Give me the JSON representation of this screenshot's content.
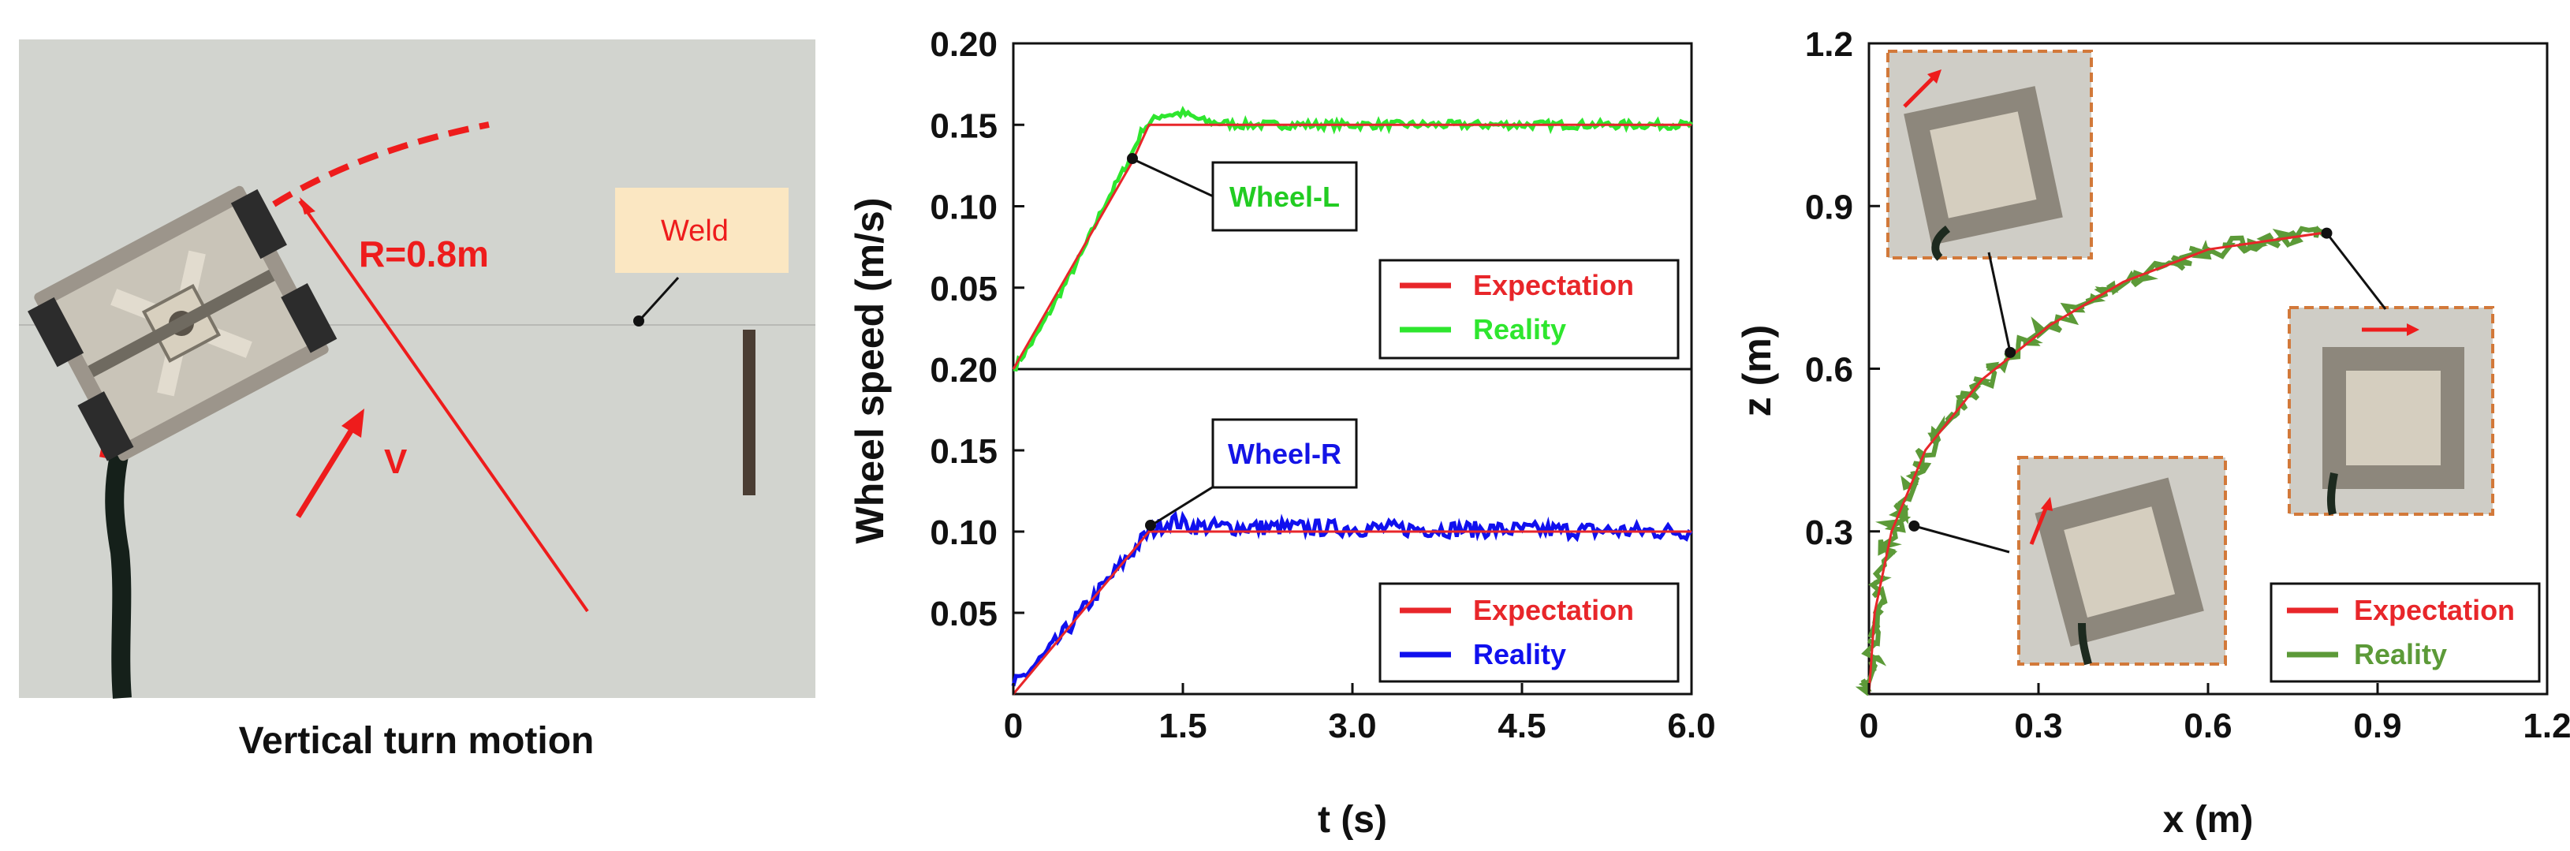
{
  "photo": {
    "caption": "Vertical turn motion",
    "radius_label": "R=0.8m",
    "velocity_label": "V",
    "weld_label": "Weld",
    "colors": {
      "wall": "#d6d7d3",
      "annotation": "#ee1c1c",
      "weld_box": "#fbe7c2"
    }
  },
  "legend": {
    "expectation": "Expectation",
    "reality": "Reality"
  },
  "chart_data": [
    {
      "type": "line",
      "title": "",
      "xlabel": "t (s)",
      "ylabel": "Wheel speed (m/s)",
      "xlim": [
        0,
        6
      ],
      "xticks": [
        "0",
        "1.5",
        "3.0",
        "4.5",
        "6.0"
      ],
      "panels": [
        {
          "name": "top",
          "ylim": [
            0,
            0.2
          ],
          "yticks": [
            "0.05",
            "0.10",
            "0.15",
            "0.20"
          ],
          "annotation": "Wheel-L",
          "annotation_point": {
            "x": 1.05,
            "y": 0.127
          },
          "series": [
            {
              "name": "Expectation",
              "color": "#e8262a",
              "points": [
                [
                  0,
                  0
                ],
                [
                  1.05,
                  0.127
                ],
                [
                  1.2,
                  0.15
                ],
                [
                  6,
                  0.15
                ]
              ]
            },
            {
              "name": "Reality",
              "color": "#2ee62e",
              "points": [
                [
                  0,
                  0
                ],
                [
                  0.2,
                  0.02
                ],
                [
                  0.4,
                  0.045
                ],
                [
                  0.6,
                  0.07
                ],
                [
                  0.8,
                  0.1
                ],
                [
                  1.0,
                  0.125
                ],
                [
                  1.15,
                  0.148
                ],
                [
                  1.3,
                  0.156
                ],
                [
                  1.5,
                  0.157
                ],
                [
                  1.7,
                  0.152
                ],
                [
                  2.0,
                  0.15
                ],
                [
                  6,
                  0.15
                ]
              ],
              "noise": 0.0025
            }
          ]
        },
        {
          "name": "bottom",
          "ylim": [
            0,
            0.2
          ],
          "yticks": [
            "0.05",
            "0.10",
            "0.15",
            "0.20"
          ],
          "annotation": "Wheel-R",
          "annotation_point": {
            "x": 1.2,
            "y": 0.106
          },
          "series": [
            {
              "name": "Expectation",
              "color": "#e8262a",
              "points": [
                [
                  0,
                  0
                ],
                [
                  1.2,
                  0.1
                ],
                [
                  6,
                  0.1
                ]
              ]
            },
            {
              "name": "Reality",
              "color": "#1010ee",
              "points": [
                [
                  0,
                  0.005
                ],
                [
                  0.3,
                  0.025
                ],
                [
                  0.6,
                  0.05
                ],
                [
                  0.9,
                  0.075
                ],
                [
                  1.2,
                  0.1
                ],
                [
                  1.4,
                  0.107
                ],
                [
                  1.6,
                  0.103
                ],
                [
                  6,
                  0.1
                ]
              ],
              "noise": 0.005
            }
          ]
        }
      ]
    },
    {
      "type": "line",
      "title": "",
      "xlabel": "x (m)",
      "ylabel": "z (m)",
      "xlim": [
        0,
        1.2
      ],
      "ylim": [
        0,
        1.2
      ],
      "xticks": [
        "0",
        "0.3",
        "0.6",
        "0.9",
        "1.2"
      ],
      "yticks": [
        "0.3",
        "0.6",
        "0.9",
        "1.2"
      ],
      "series": [
        {
          "name": "Expectation",
          "color": "#e8262a",
          "points": [
            [
              0,
              0
            ],
            [
              0.01,
              0.15
            ],
            [
              0.04,
              0.3
            ],
            [
              0.1,
              0.45
            ],
            [
              0.2,
              0.58
            ],
            [
              0.32,
              0.68
            ],
            [
              0.45,
              0.76
            ],
            [
              0.6,
              0.82
            ],
            [
              0.8,
              0.85
            ]
          ]
        },
        {
          "name": "Reality",
          "color": "#5c9a38",
          "points": [
            [
              0,
              0
            ],
            [
              0.01,
              0.15
            ],
            [
              0.04,
              0.3
            ],
            [
              0.1,
              0.45
            ],
            [
              0.2,
              0.58
            ],
            [
              0.32,
              0.68
            ],
            [
              0.45,
              0.76
            ],
            [
              0.6,
              0.82
            ],
            [
              0.8,
              0.85
            ]
          ],
          "noise": 0.015
        }
      ],
      "markers": [
        {
          "x": 0.08,
          "y": 0.31
        },
        {
          "x": 0.25,
          "y": 0.63
        },
        {
          "x": 0.81,
          "y": 0.85
        }
      ],
      "inset_arrow_color": "#ee1c1c",
      "inset_frame_color": "#d2793a"
    }
  ]
}
